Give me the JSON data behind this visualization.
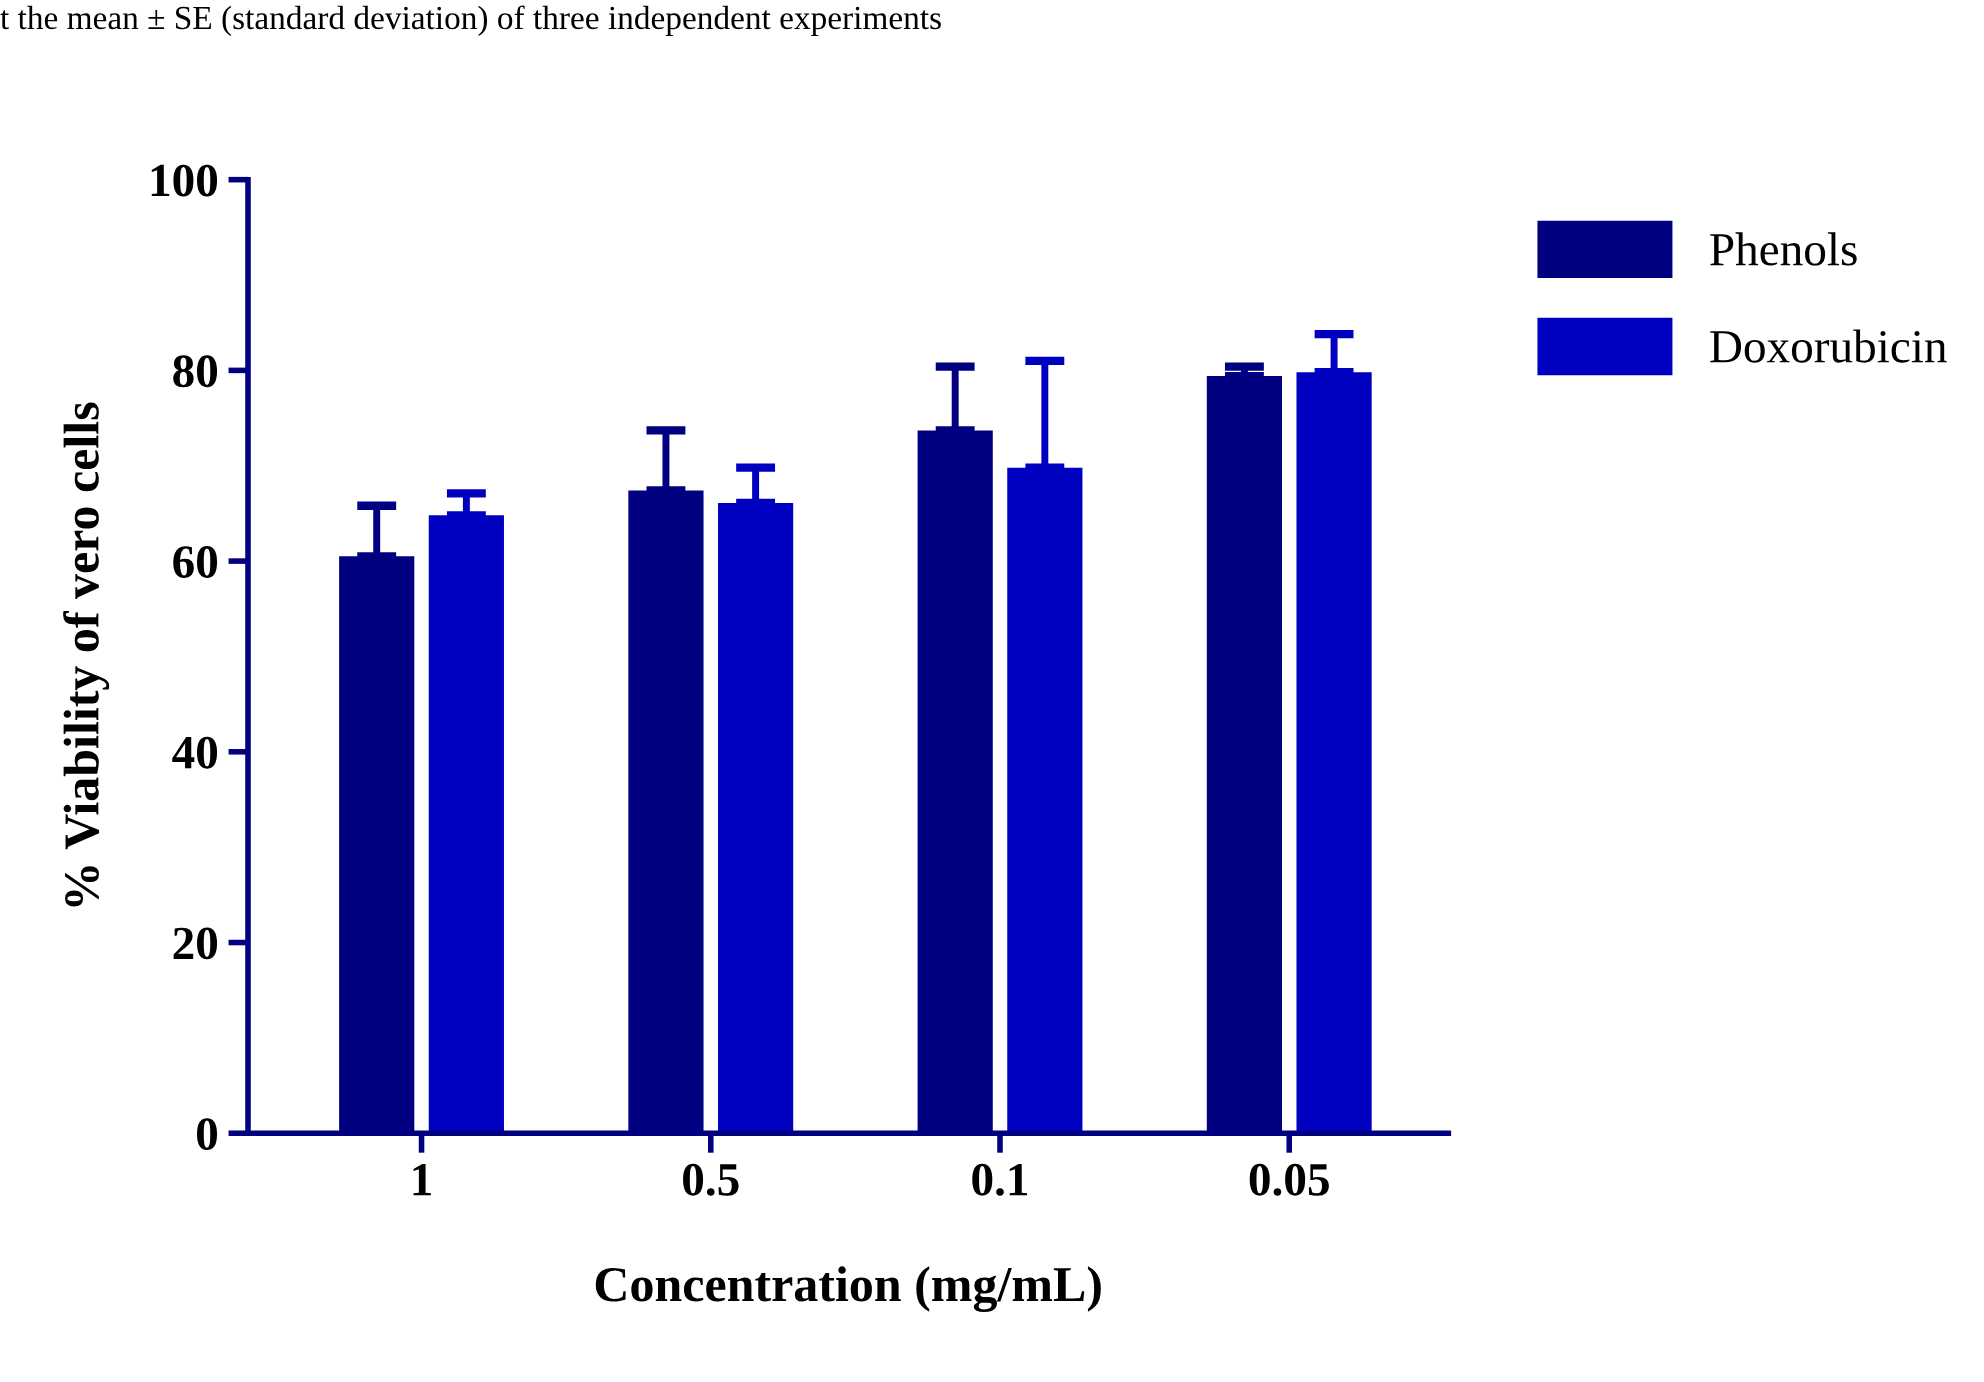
{
  "chart_data": {
    "type": "bar",
    "xlabel": "Concentration (mg/mL)",
    "ylabel": "% Viability of vero cells",
    "categories": [
      "1",
      "0.5",
      "0.1",
      "0.05"
    ],
    "series": [
      {
        "name": "Phenols",
        "color": "#000080",
        "values": [
          60.5,
          67.4,
          73.7,
          79.4
        ],
        "errors": [
          [
            60.5,
            65.8
          ],
          [
            67.4,
            73.7
          ],
          [
            73.7,
            80.4
          ],
          [
            79.4,
            80.4
          ]
        ]
      },
      {
        "name": "Doxorubicin",
        "color": "#0000c0",
        "values": [
          64.8,
          66.1,
          69.8,
          79.8
        ],
        "errors": [
          [
            64.8,
            67.1
          ],
          [
            66.1,
            69.8
          ],
          [
            69.8,
            81.0
          ],
          [
            79.8,
            83.8
          ]
        ]
      }
    ],
    "ylim": [
      0,
      100
    ],
    "yticks": [
      0,
      20,
      40,
      60,
      80,
      100
    ],
    "grid": false,
    "legend": "right",
    "annotations": [
      "t the mean ± SE (standard deviation) of three independent experiments"
    ]
  }
}
